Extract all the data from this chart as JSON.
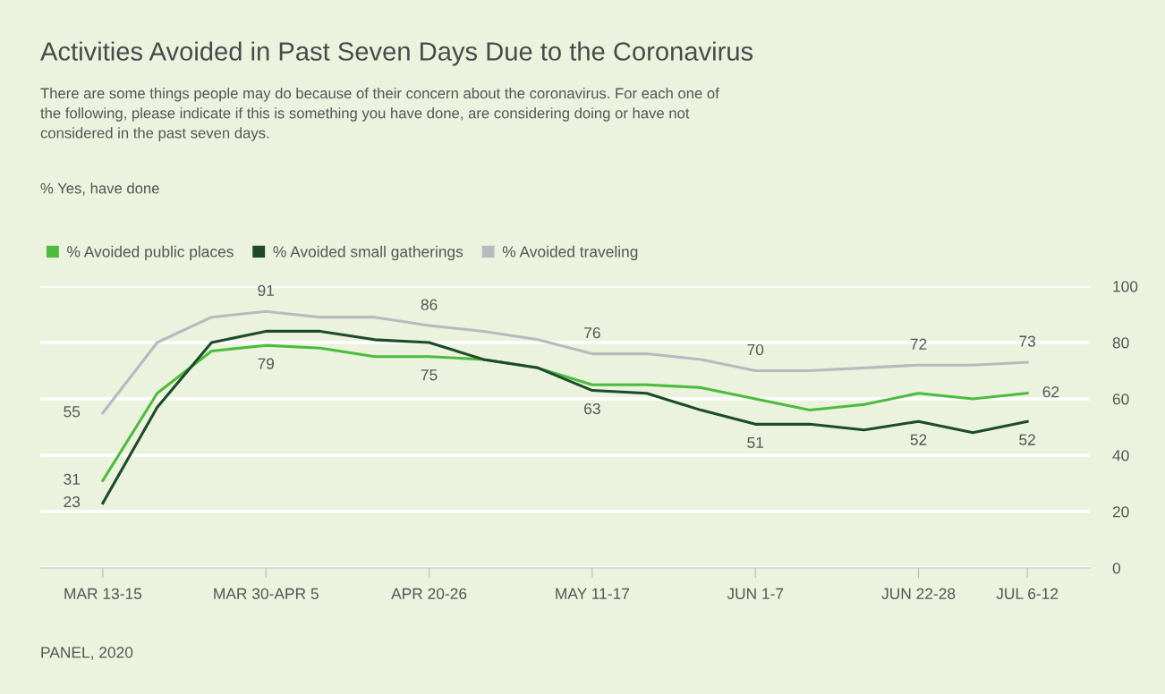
{
  "chart_data": {
    "type": "line",
    "title": "Activities Avoided in Past Seven Days Due to the Coronavirus",
    "subtitle": "There are some things people may do because of their concern about the coronavirus. For each one of\nthe following, please indicate if this is something you have done, are considering doing or have not\nconsidered in the past seven days.",
    "annotations": [
      "% Yes, have done",
      "PANEL, 2020"
    ],
    "categories": [
      "MAR 13-15",
      null,
      null,
      "MAR 30-APR 5",
      null,
      null,
      "APR 20-26",
      null,
      null,
      "MAY 11-17",
      null,
      null,
      "JUN 1-7",
      null,
      null,
      "JUN 22-28",
      null,
      "JUL 6-12"
    ],
    "series": [
      {
        "name": "% Avoided public places",
        "color": "#4dbb3d",
        "values": [
          31,
          62,
          77,
          79,
          78,
          75,
          75,
          74,
          71,
          65,
          65,
          64,
          60,
          56,
          58,
          62,
          60,
          62
        ],
        "value_labels": [
          "31",
          null,
          null,
          "79",
          null,
          null,
          "75",
          null,
          null,
          null,
          null,
          null,
          null,
          null,
          null,
          null,
          null,
          "62"
        ]
      },
      {
        "name": "% Avoided small gatherings",
        "color": "#1c4a2a",
        "values": [
          23,
          57,
          80,
          84,
          84,
          81,
          80,
          74,
          71,
          63,
          62,
          56,
          51,
          51,
          49,
          52,
          48,
          52
        ],
        "value_labels": [
          "23",
          null,
          null,
          null,
          null,
          null,
          null,
          null,
          null,
          "63",
          null,
          null,
          "51",
          null,
          null,
          "52",
          null,
          "52"
        ]
      },
      {
        "name": "% Avoided traveling",
        "color": "#b9b9c0",
        "values": [
          55,
          80,
          89,
          91,
          89,
          89,
          86,
          84,
          81,
          76,
          76,
          74,
          70,
          70,
          71,
          72,
          72,
          73
        ],
        "value_labels": [
          "55",
          null,
          null,
          "91",
          null,
          null,
          "86",
          null,
          null,
          "76",
          null,
          null,
          "70",
          null,
          null,
          "72",
          null,
          "73"
        ]
      }
    ],
    "ylim": [
      0,
      100
    ],
    "yticks": [
      0,
      20,
      40,
      60,
      80,
      100
    ],
    "grid": "y",
    "legend": "top left",
    "marker": "none",
    "line_style": "solid"
  }
}
